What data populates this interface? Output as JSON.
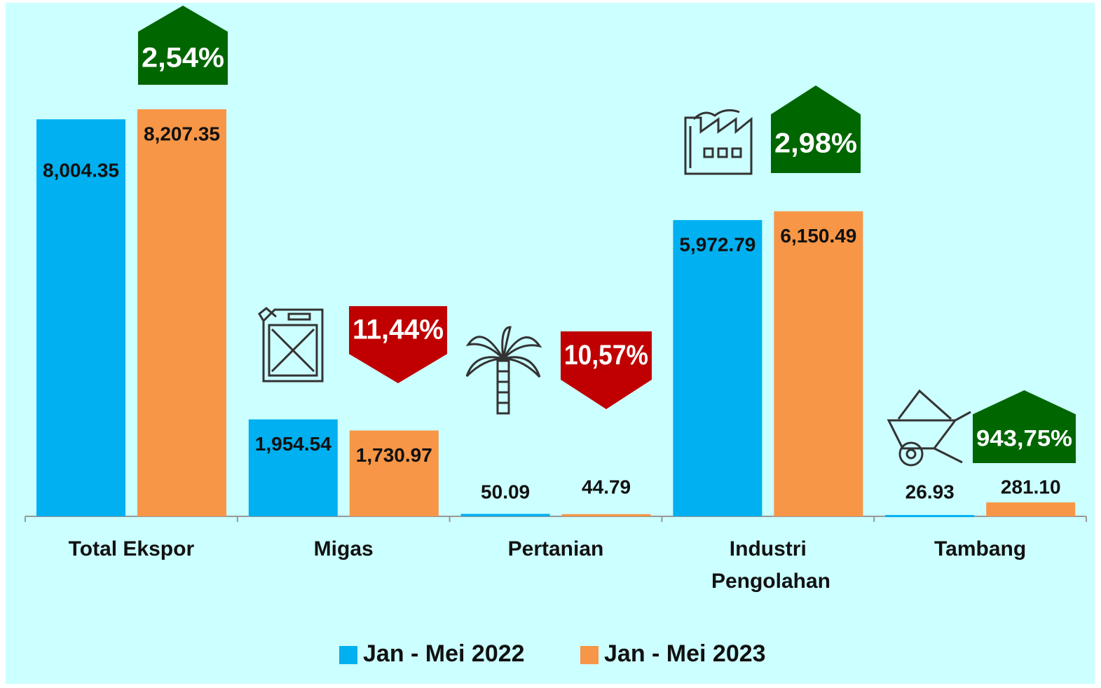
{
  "chart_data": {
    "type": "bar",
    "categories": [
      "Total Ekspor",
      "Migas",
      "Pertanian",
      "Industri Pengolahan",
      "Tambang"
    ],
    "series": [
      {
        "name": "Jan - Mei 2022",
        "color": "#00b0f0",
        "values": [
          8004.35,
          1954.54,
          50.09,
          5972.79,
          26.93
        ],
        "value_labels": [
          "8,004.35",
          "1,954.54",
          "50.09",
          "5,972.79",
          "26.93"
        ]
      },
      {
        "name": "Jan - Mei 2023",
        "color": "#f79646",
        "values": [
          8207.35,
          1730.97,
          44.79,
          6150.49,
          281.1
        ],
        "value_labels": [
          "8,207.35",
          "1,730.97",
          "44.79",
          "6,150.49",
          "281.10"
        ]
      }
    ],
    "ylim": [
      0,
      10000
    ],
    "growth_labels": [
      {
        "label": "2,54%",
        "color": "#006600"
      },
      {
        "label": "11,44%",
        "color": "#c00000"
      },
      {
        "label": "10,57%",
        "color": "#c00000"
      },
      {
        "label": "2,98%",
        "color": "#006600"
      },
      {
        "label": "943,75%",
        "color": "#006600"
      }
    ],
    "background": "#ccffff"
  }
}
